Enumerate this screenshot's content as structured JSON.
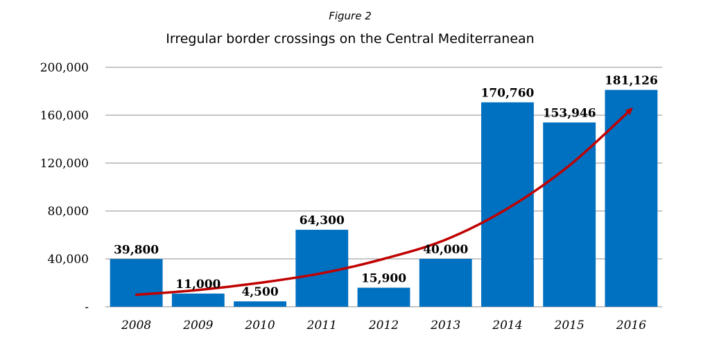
{
  "chart_data": {
    "type": "bar",
    "figure_label": "Figure 2",
    "title": "Irregular border crossings on the Central Mediterranean",
    "xlabel": "",
    "ylabel": "",
    "categories": [
      "2008",
      "2009",
      "2010",
      "2011",
      "2012",
      "2013",
      "2014",
      "2015",
      "2016"
    ],
    "values": [
      39800,
      11000,
      4500,
      64300,
      15900,
      40000,
      170760,
      153946,
      181126
    ],
    "value_labels": [
      "39,800",
      "11,000",
      "4,500",
      "64,300",
      "15,900",
      "40,000",
      "170,760",
      "153,946",
      "181,126"
    ],
    "ylim": [
      0,
      200000
    ],
    "yticks": [
      0,
      40000,
      80000,
      120000,
      160000,
      200000
    ],
    "ytick_labels": [
      "-",
      "40,000",
      "80,000",
      "120,000",
      "160,000",
      "200,000"
    ],
    "grid": true,
    "legend": "none",
    "bar_color": "#0070c0",
    "trend_color": "#c00000",
    "trend": {
      "type": "exponential-arrow",
      "x": [
        "2008",
        "2009",
        "2010",
        "2011",
        "2012",
        "2013",
        "2014",
        "2015",
        "2016"
      ],
      "y": [
        10000,
        14000,
        20000,
        28000,
        40000,
        56000,
        82000,
        118000,
        165000
      ]
    }
  }
}
